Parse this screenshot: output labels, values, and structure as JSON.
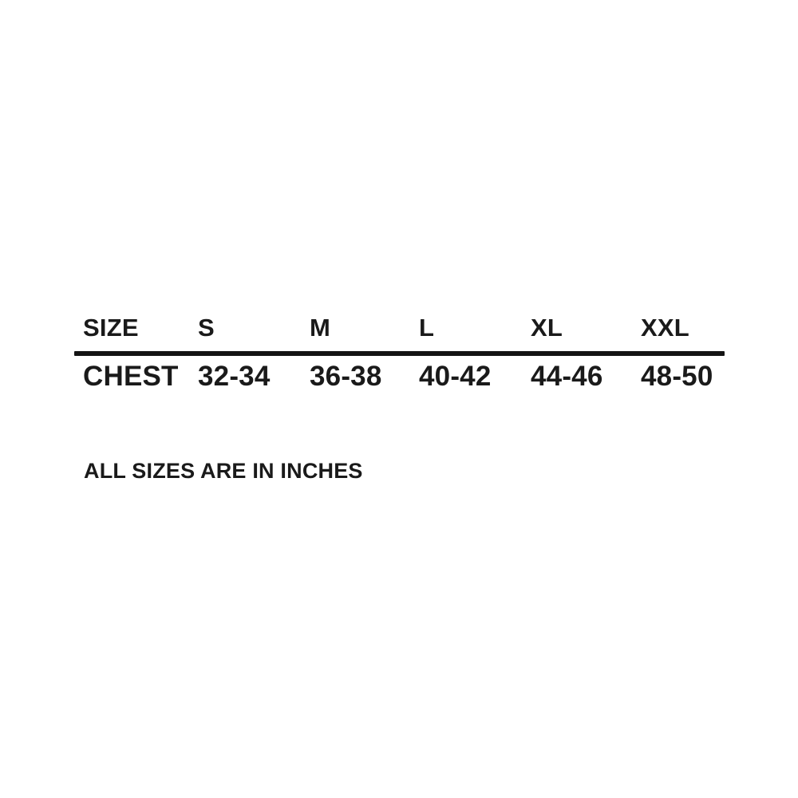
{
  "chart_data": {
    "type": "table",
    "columns": [
      "SIZE",
      "S",
      "M",
      "L",
      "XL",
      "XXL"
    ],
    "rows": [
      [
        "CHEST",
        "32-34",
        "36-38",
        "40-42",
        "44-46",
        "48-50"
      ]
    ],
    "note": "ALL SIZES ARE IN INCHES"
  },
  "colors": {
    "text": "#1a1a1a",
    "divider": "#141414",
    "background": "#ffffff"
  }
}
